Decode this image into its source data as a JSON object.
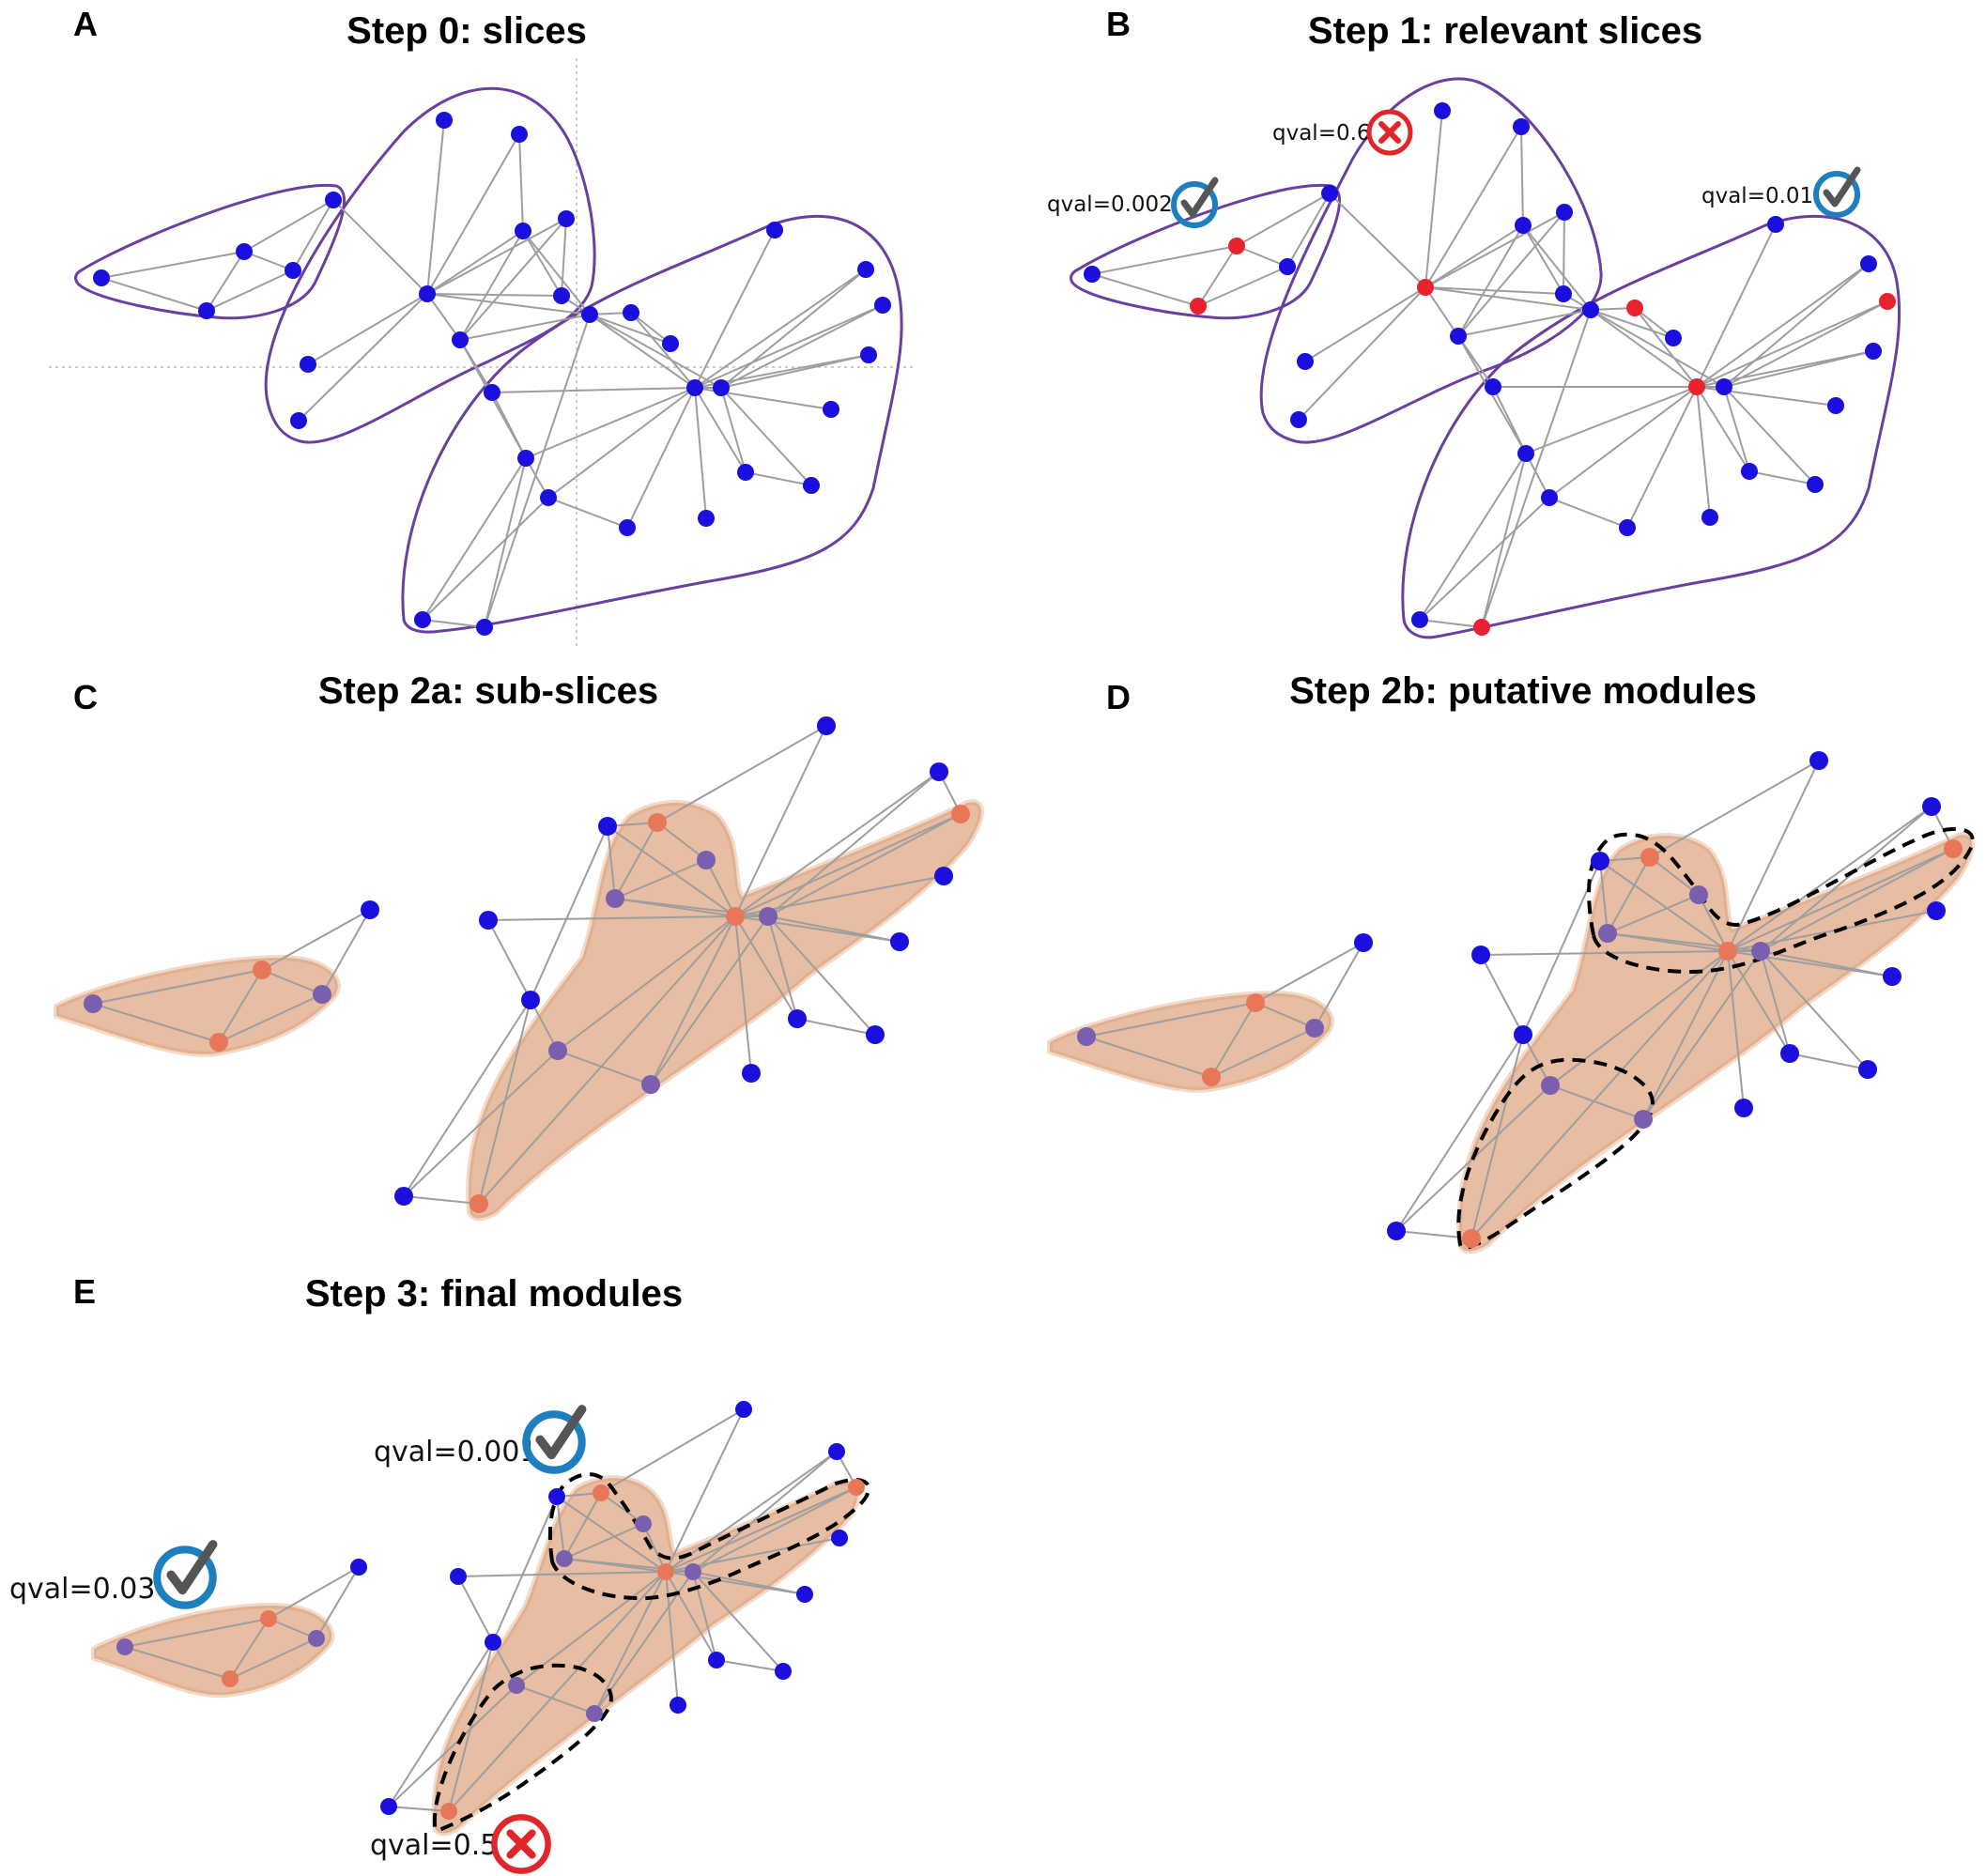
{
  "panels": {
    "A": {
      "letter": "A",
      "title": "Step 0: slices"
    },
    "B": {
      "letter": "B",
      "title": "Step 1: relevant slices"
    },
    "C": {
      "letter": "C",
      "title": "Step 2a: sub-slices"
    },
    "D": {
      "letter": "D",
      "title": "Step 2b: putative modules"
    },
    "E": {
      "letter": "E",
      "title": "Step 3: final modules"
    }
  },
  "qvals": {
    "b_left": {
      "text": "qval=0.002",
      "status": "accepted",
      "icon": "check-icon"
    },
    "b_mid": {
      "text": "qval=0.6",
      "status": "rejected",
      "icon": "cross-icon"
    },
    "b_right": {
      "text": "qval=0.01",
      "status": "accepted",
      "icon": "check-icon"
    },
    "e_top": {
      "text": "qval=0.001",
      "status": "accepted",
      "icon": "check-icon"
    },
    "e_left": {
      "text": "qval=0.03",
      "status": "accepted",
      "icon": "check-icon"
    },
    "e_bottom": {
      "text": "qval=0.5",
      "status": "rejected",
      "icon": "cross-icon"
    }
  },
  "colors": {
    "node": "#1a0fdc",
    "relevant_node": "#e8222e",
    "subslice_hub": "#e8775a",
    "subslice_node": "#7a5fb0",
    "slice_outline": "#6b3fa0",
    "subslice_fill": "#d9946a",
    "edge": "#9e9e9e",
    "check": "#1e7fc0",
    "cross": "#e0262a"
  }
}
